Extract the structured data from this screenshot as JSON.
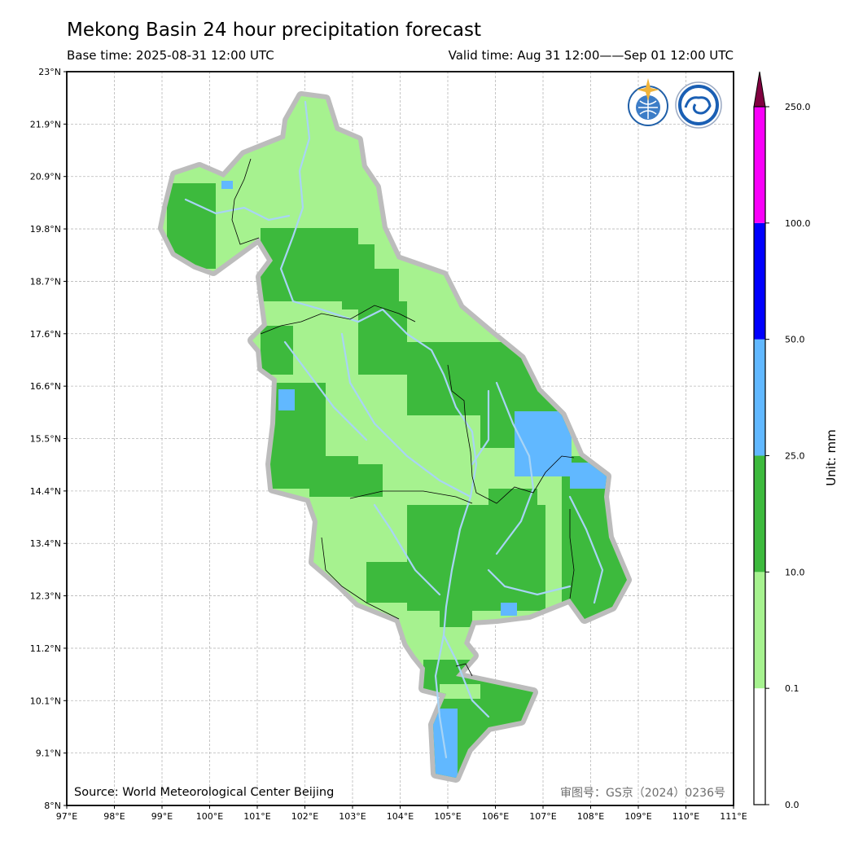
{
  "header": {
    "title": "Mekong Basin 24 hour precipitation forecast",
    "base_time": "Base time: 2025-08-31 12:00 UTC",
    "valid_time": "Valid time: Aug 31 12:00——Sep 01 12:00 UTC"
  },
  "map": {
    "source": "Source: World Meteorological Center Beijing",
    "approval_no": "审图号：GS京（2024）0236号",
    "lon_labels": [
      "97°E",
      "98°E",
      "99°E",
      "100°E",
      "101°E",
      "102°E",
      "103°E",
      "104°E",
      "105°E",
      "106°E",
      "107°E",
      "108°E",
      "109°E",
      "110°E",
      "111°E"
    ],
    "lat_labels": [
      "23°N",
      "21.9°N",
      "20.9°N",
      "19.8°N",
      "18.7°N",
      "17.6°N",
      "16.6°N",
      "15.5°N",
      "14.4°N",
      "13.4°N",
      "12.3°N",
      "11.2°N",
      "10.1°N",
      "9.1°N",
      "8°N"
    ],
    "logos": [
      "wmo-logo",
      "cma-logo"
    ],
    "colors": {
      "no_rain": "#ffffff",
      "light": "#a6f28f",
      "moderate": "#3dba3d",
      "heavy": "#61b8ff",
      "rainstorm": "#0000fe",
      "heavy_rainstorm": "#fa00fa",
      "extreme": "#810040",
      "river": "#a8d4f5",
      "basin_halo": "#b8b8b8"
    }
  },
  "colorbar": {
    "unit_label": "Unit: mm",
    "ticks": [
      "250.0",
      "100.0",
      "50.0",
      "25.0",
      "10.0",
      "0.1",
      "0.0"
    ],
    "colors": [
      "#ffffff",
      "#a6f28f",
      "#3dba3d",
      "#61b8ff",
      "#0000fe",
      "#fa00fa",
      "#810040"
    ]
  }
}
